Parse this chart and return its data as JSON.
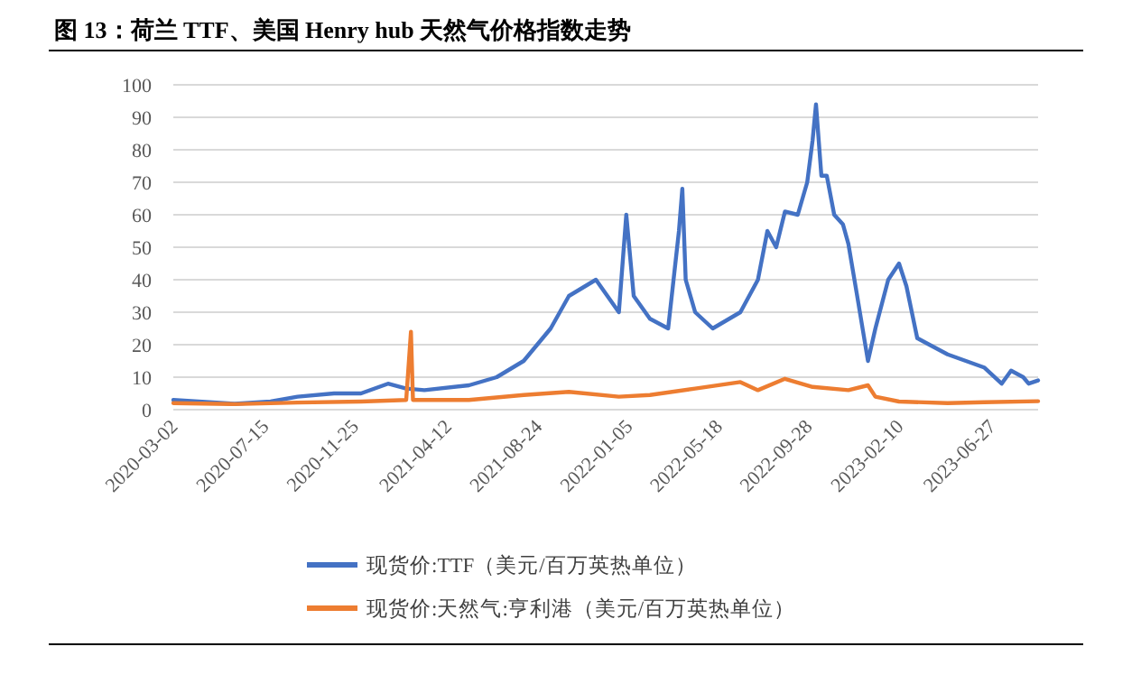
{
  "chart_data": {
    "type": "line",
    "title": "图 13：荷兰 TTF、美国 Henry hub 天然气价格指数走势",
    "xlim": [
      "2020-03-02",
      "2023-09-04"
    ],
    "xticks": [
      "2020-03-02",
      "2020-07-15",
      "2020-11-25",
      "2021-04-12",
      "2021-08-24",
      "2022-01-05",
      "2022-05-18",
      "2022-09-28",
      "2023-02-10",
      "2023-06-27"
    ],
    "ylim": [
      0,
      100
    ],
    "yticks": [
      0,
      10,
      20,
      30,
      40,
      50,
      60,
      70,
      80,
      90,
      100
    ],
    "grid": "y",
    "legend": "bottom",
    "series": [
      {
        "name": "现货价:TTF（美元/百万英热单位）",
        "color": "#4472c4",
        "x": [
          "2020-03-02",
          "2020-06-01",
          "2020-07-24",
          "2020-09-02",
          "2020-10-26",
          "2020-12-05",
          "2021-01-14",
          "2021-02-10",
          "2021-03-09",
          "2021-05-14",
          "2021-06-24",
          "2021-08-03",
          "2021-09-12",
          "2021-10-09",
          "2021-11-18",
          "2021-12-22",
          "2022-01-02",
          "2022-01-13",
          "2022-02-06",
          "2022-03-05",
          "2022-03-21",
          "2022-03-26",
          "2022-03-31",
          "2022-04-14",
          "2022-05-10",
          "2022-06-20",
          "2022-07-16",
          "2022-07-30",
          "2022-08-12",
          "2022-08-25",
          "2022-09-13",
          "2022-09-27",
          "2022-10-05",
          "2022-10-10",
          "2022-10-18",
          "2022-10-26",
          "2022-11-06",
          "2022-11-19",
          "2022-11-27",
          "2022-12-10",
          "2022-12-26",
          "2023-01-06",
          "2023-01-25",
          "2023-02-10",
          "2023-02-21",
          "2023-03-09",
          "2023-03-27",
          "2023-04-23",
          "2023-05-20",
          "2023-06-16",
          "2023-07-12",
          "2023-07-26",
          "2023-08-13",
          "2023-08-21",
          "2023-09-04"
        ],
        "values": [
          3,
          1.8,
          2.5,
          4,
          5,
          5,
          8,
          6.5,
          6,
          7.5,
          10,
          15,
          25,
          35,
          40,
          30,
          60,
          35,
          28,
          25,
          55,
          68,
          40,
          30,
          25,
          30,
          40,
          55,
          50,
          61,
          60,
          70,
          83,
          94,
          72,
          72,
          60,
          57,
          51,
          35,
          15,
          25,
          40,
          45,
          38,
          22,
          20,
          17,
          15,
          13,
          8,
          12,
          10,
          8,
          9
        ]
      },
      {
        "name": "现货价:天然气:亨利港（美元/百万英热单位）",
        "color": "#ed7d31",
        "x": [
          "2020-03-02",
          "2020-06-01",
          "2020-09-02",
          "2020-12-05",
          "2021-02-10",
          "2021-02-17",
          "2021-02-20",
          "2021-05-14",
          "2021-08-03",
          "2021-10-09",
          "2021-12-22",
          "2022-02-06",
          "2022-04-14",
          "2022-06-20",
          "2022-07-16",
          "2022-08-25",
          "2022-10-05",
          "2022-11-27",
          "2022-12-26",
          "2023-01-06",
          "2023-02-10",
          "2023-04-23",
          "2023-06-16",
          "2023-09-04"
        ],
        "values": [
          2,
          1.7,
          2.2,
          2.5,
          3,
          24,
          3,
          3,
          4.5,
          5.5,
          4,
          4.5,
          6.5,
          8.5,
          6,
          9.5,
          7,
          6,
          7.5,
          4,
          2.5,
          2,
          2.3,
          2.6
        ]
      }
    ]
  }
}
